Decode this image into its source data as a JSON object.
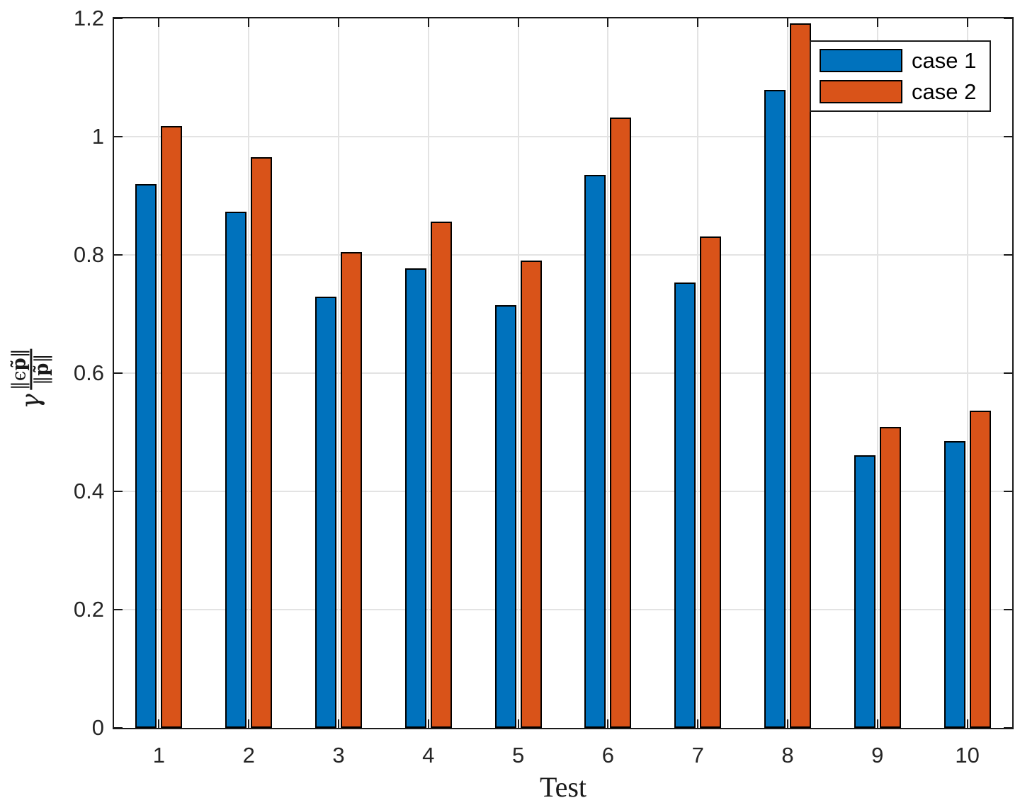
{
  "figure": {
    "xlabel": "Test",
    "ylabel_parts": {
      "gamma": "γ",
      "num_pre": "‖ϵ",
      "num_p": "p̃",
      "num_post": "‖",
      "den_pre": "‖",
      "den_p": "p̃",
      "den_post": "‖"
    }
  },
  "chart_data": {
    "type": "bar",
    "title": "",
    "xlabel": "Test",
    "ylabel": "gamma * ||eps*p_tilde|| / ||p_tilde||",
    "categories": [
      "1",
      "2",
      "3",
      "4",
      "5",
      "6",
      "7",
      "8",
      "9",
      "10"
    ],
    "series": [
      {
        "name": "case 1",
        "color": "#0072BD",
        "values": [
          0.92,
          0.873,
          0.729,
          0.777,
          0.715,
          0.935,
          0.753,
          1.079,
          0.461,
          0.485
        ]
      },
      {
        "name": "case 2",
        "color": "#D95319",
        "values": [
          1.018,
          0.965,
          0.805,
          0.856,
          0.791,
          1.032,
          0.831,
          1.192,
          0.509,
          0.536
        ]
      }
    ],
    "ylim": [
      0,
      1.2
    ],
    "yticks": [
      0,
      0.2,
      0.4,
      0.6,
      0.8,
      1,
      1.2
    ],
    "ytick_labels": [
      "0",
      "0.2",
      "0.4",
      "0.6",
      "0.8",
      "1",
      "1.2"
    ],
    "grid": true,
    "grid_color": "#e3e3e3",
    "axis_color": "#1a1a1a",
    "bar_edge_color": "#000000",
    "legend_position": "top-right"
  }
}
